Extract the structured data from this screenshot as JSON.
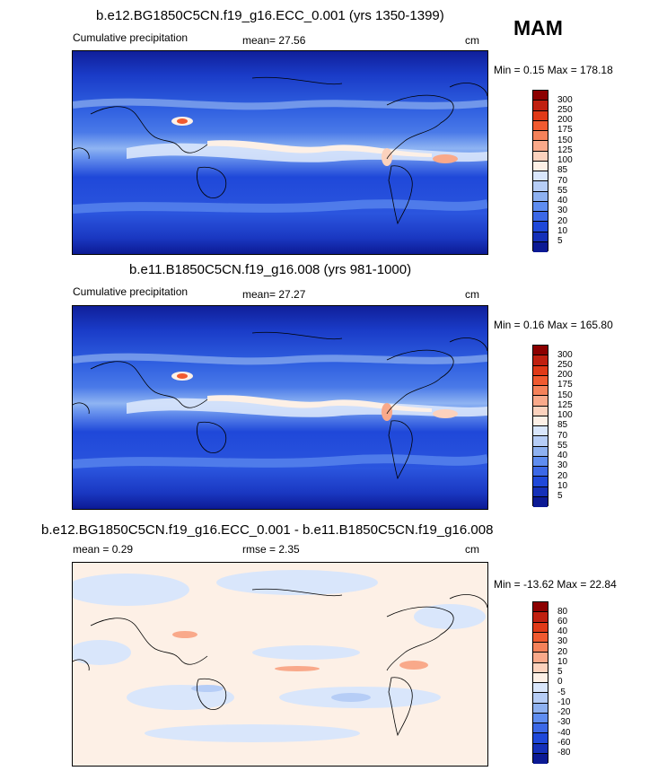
{
  "season": "MAM",
  "panels": [
    {
      "title": "b.e12.BG1850C5CN.f19_g16.ECC_0.001 (yrs 1350-1399)",
      "left_label": "Cumulative precipitation",
      "mid_label": "mean=  27.56",
      "units": "cm",
      "minmax": "Min =  0.15 Max = 178.18",
      "levels": [
        "300",
        "250",
        "200",
        "175",
        "150",
        "125",
        "100",
        "85",
        "70",
        "55",
        "40",
        "30",
        "20",
        "10",
        "5"
      ],
      "colors": [
        "#8c0000",
        "#c02010",
        "#e03a18",
        "#f05a30",
        "#f5825a",
        "#f9a98a",
        "#fcd2bd",
        "#fdf0e6",
        "#d9e6fb",
        "#b6cdf6",
        "#8eb1f0",
        "#5f8df0",
        "#3c68e6",
        "#1f48d9",
        "#1530b8",
        "#0c1a94"
      ]
    },
    {
      "title": "b.e11.B1850C5CN.f19_g16.008 (yrs 981-1000)",
      "left_label": "Cumulative precipitation",
      "mid_label": "mean=  27.27",
      "units": "cm",
      "minmax": "Min =  0.16 Max = 165.80",
      "levels": [
        "300",
        "250",
        "200",
        "175",
        "150",
        "125",
        "100",
        "85",
        "70",
        "55",
        "40",
        "30",
        "20",
        "10",
        "5"
      ],
      "colors": [
        "#8c0000",
        "#c02010",
        "#e03a18",
        "#f05a30",
        "#f5825a",
        "#f9a98a",
        "#fcd2bd",
        "#fdf0e6",
        "#d9e6fb",
        "#b6cdf6",
        "#8eb1f0",
        "#5f8df0",
        "#3c68e6",
        "#1f48d9",
        "#1530b8",
        "#0c1a94"
      ]
    },
    {
      "title": "b.e12.BG1850C5CN.f19_g16.ECC_0.001 - b.e11.B1850C5CN.f19_g16.008",
      "left_label": "mean =   0.29",
      "mid_label": "rmse =   2.35",
      "units": "cm",
      "minmax": "Min = -13.62 Max =  22.84",
      "levels": [
        "80",
        "60",
        "40",
        "30",
        "20",
        "10",
        "5",
        "0",
        "-5",
        "-10",
        "-20",
        "-30",
        "-40",
        "-60",
        "-80"
      ],
      "colors": [
        "#8c0000",
        "#c02010",
        "#e03a18",
        "#f05a30",
        "#f5825a",
        "#f9a98a",
        "#fcd2bd",
        "#fdf0e6",
        "#d9e6fb",
        "#b6cdf6",
        "#8eb1f0",
        "#5f8df0",
        "#3c68e6",
        "#1f48d9",
        "#1530b8",
        "#0c1a94"
      ]
    }
  ]
}
